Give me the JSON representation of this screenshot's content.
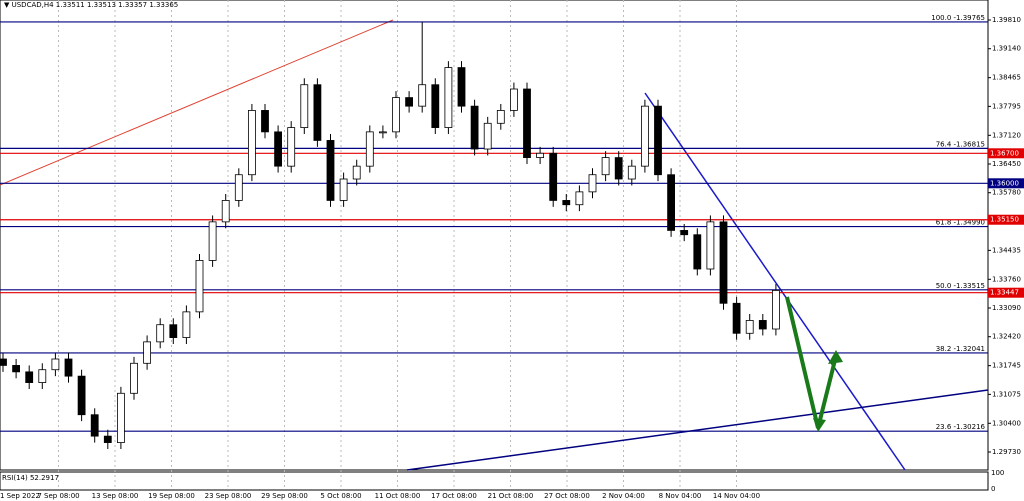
{
  "chart_data": {
    "type": "candlestick",
    "title": "▼ USDCAD,H4  1.33511 1.33513 1.33357 1.33365",
    "up_color": "#ffffff",
    "down_color": "#000000",
    "open": [
      1.319,
      1.3175,
      1.316,
      1.3135,
      1.3165,
      1.319,
      1.315,
      1.306,
      1.301,
      1.2995,
      1.311,
      1.318,
      1.323,
      1.327,
      1.324,
      1.33,
      1.342,
      1.351,
      1.356,
      1.362,
      1.377,
      1.372,
      1.364,
      1.373,
      1.383,
      1.37,
      1.356,
      1.361,
      1.364,
      1.372,
      1.372,
      1.38,
      1.378,
      1.383,
      1.373,
      1.387,
      1.378,
      1.368,
      1.374,
      1.377,
      1.382,
      1.366,
      1.367,
      1.356,
      1.355,
      1.358,
      1.362,
      1.366,
      1.361,
      1.364,
      1.378,
      1.362,
      1.349,
      1.348,
      1.34,
      1.351,
      1.332,
      1.325,
      1.328,
      1.326
    ],
    "high": [
      1.3205,
      1.319,
      1.3175,
      1.318,
      1.3205,
      1.3205,
      1.3165,
      1.3075,
      1.3025,
      1.3125,
      1.3195,
      1.3245,
      1.3285,
      1.3285,
      1.3315,
      1.3435,
      1.3525,
      1.3575,
      1.3635,
      1.3785,
      1.3785,
      1.3735,
      1.3745,
      1.3845,
      1.3845,
      1.3715,
      1.3625,
      1.3655,
      1.3735,
      1.3735,
      1.3815,
      1.3815,
      1.3976,
      1.3845,
      1.3885,
      1.3885,
      1.3795,
      1.3755,
      1.3785,
      1.3835,
      1.3835,
      1.3685,
      1.3685,
      1.3575,
      1.3595,
      1.3635,
      1.3675,
      1.3675,
      1.3655,
      1.3795,
      1.3795,
      1.3635,
      1.3505,
      1.3495,
      1.3525,
      1.3525,
      1.3335,
      1.3295,
      1.3295,
      1.3365
    ],
    "low": [
      1.316,
      1.3145,
      1.312,
      1.312,
      1.315,
      1.3135,
      1.3045,
      1.2995,
      1.298,
      1.298,
      1.3095,
      1.3165,
      1.3215,
      1.3225,
      1.3225,
      1.3285,
      1.3405,
      1.3495,
      1.3545,
      1.3605,
      1.3705,
      1.3625,
      1.3625,
      1.3715,
      1.3685,
      1.3545,
      1.3545,
      1.3595,
      1.3625,
      1.3705,
      1.3705,
      1.3765,
      1.3765,
      1.3715,
      1.3715,
      1.3765,
      1.3665,
      1.3665,
      1.3725,
      1.3755,
      1.3645,
      1.3645,
      1.3545,
      1.3535,
      1.3535,
      1.3565,
      1.3605,
      1.3595,
      1.3595,
      1.3625,
      1.3605,
      1.3475,
      1.3465,
      1.3385,
      1.3385,
      1.3305,
      1.3235,
      1.3235,
      1.3245,
      1.3245
    ],
    "close": [
      1.3175,
      1.316,
      1.3135,
      1.3165,
      1.319,
      1.315,
      1.306,
      1.301,
      1.2995,
      1.311,
      1.318,
      1.323,
      1.327,
      1.324,
      1.33,
      1.342,
      1.351,
      1.356,
      1.362,
      1.377,
      1.372,
      1.364,
      1.373,
      1.383,
      1.37,
      1.356,
      1.361,
      1.364,
      1.372,
      1.372,
      1.38,
      1.378,
      1.383,
      1.373,
      1.387,
      1.378,
      1.368,
      1.374,
      1.377,
      1.382,
      1.366,
      1.367,
      1.356,
      1.355,
      1.358,
      1.362,
      1.366,
      1.361,
      1.364,
      1.378,
      1.362,
      1.349,
      1.348,
      1.34,
      1.351,
      1.332,
      1.325,
      1.328,
      1.326,
      1.335
    ],
    "ylim": [
      1.2931,
      1.40277
    ],
    "yticks": [
      {
        "value": 1.3981,
        "label": "1.39810"
      },
      {
        "value": 1.3914,
        "label": "1.39140"
      },
      {
        "value": 1.38465,
        "label": "1.38465"
      },
      {
        "value": 1.37795,
        "label": "1.37795"
      },
      {
        "value": 1.3712,
        "label": "1.37120"
      },
      {
        "value": 1.3645,
        "label": "1.36450"
      },
      {
        "value": 1.3578,
        "label": "1.35780"
      },
      {
        "value": 1.34435,
        "label": "1.34435"
      },
      {
        "value": 1.3376,
        "label": "1.33760"
      },
      {
        "value": 1.3309,
        "label": "1.33090"
      },
      {
        "value": 1.3242,
        "label": "1.32420"
      },
      {
        "value": 1.31745,
        "label": "1.31745"
      },
      {
        "value": 1.31075,
        "label": "1.31075"
      },
      {
        "value": 1.304,
        "label": "1.30400"
      },
      {
        "value": 1.2973,
        "label": "1.29730"
      }
    ],
    "x_tick_labels": [
      "1 Sep 2022",
      "7 Sep 08:00",
      "13 Sep 08:00",
      "19 Sep 08:00",
      "23 Sep 08:00",
      "29 Sep 08:00",
      "5 Oct 08:00",
      "11 Oct 08:00",
      "17 Oct 08:00",
      "21 Oct 08:00",
      "27 Oct 08:00",
      "2 Nov 04:00",
      "8 Nov 04:00",
      "14 Nov 04:00"
    ],
    "fib_levels": [
      {
        "value": 1.39765,
        "label": "100.0 -1.39765"
      },
      {
        "value": 1.36815,
        "label": "76.4 -1.36815"
      },
      {
        "value": 1.3499,
        "label": "61.8 -1.34990"
      },
      {
        "value": 1.33515,
        "label": "50.0 -1.33515"
      },
      {
        "value": 1.32041,
        "label": "38.2 -1.32041"
      },
      {
        "value": 1.30216,
        "label": "23.6 -1.30216"
      }
    ],
    "fib_color": "#000080",
    "price_lines": [
      {
        "value": 1.367,
        "label": "1.36700",
        "color": "#e00000"
      },
      {
        "value": 1.36,
        "label": "1.36000",
        "color": "#000080"
      },
      {
        "value": 1.3515,
        "label": "1.35150",
        "color": "#e00000"
      },
      {
        "value": 1.33447,
        "label": "1.33447",
        "color": "#e00000"
      }
    ],
    "rsi": {
      "label": "RSI(14) 52.2917",
      "ylim": [
        0,
        100
      ],
      "yticks": [
        100,
        0
      ]
    }
  }
}
